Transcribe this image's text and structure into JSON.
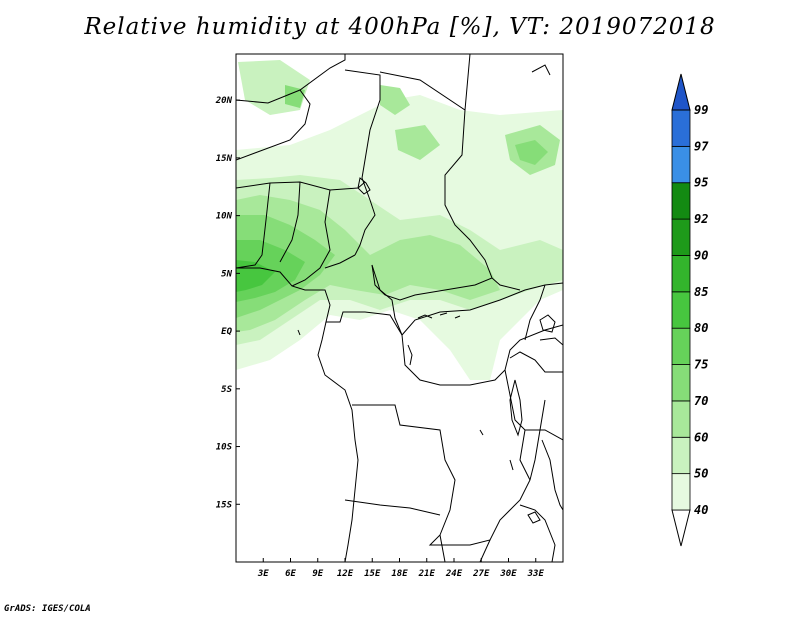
{
  "title": "Relative humidity at 400hPa [%], VT: 2019072018",
  "credit": "GrADS: IGES/COLA",
  "map": {
    "lon_range": [
      0,
      36
    ],
    "lat_range": [
      -20,
      24
    ],
    "x_ticks": [
      "3E",
      "6E",
      "9E",
      "12E",
      "15E",
      "18E",
      "21E",
      "24E",
      "27E",
      "30E",
      "33E"
    ],
    "y_ticks": [
      "20N",
      "15N",
      "10N",
      "5N",
      "EQ",
      "5S",
      "10S",
      "15S"
    ]
  },
  "colorbar": {
    "labels": [
      "40",
      "50",
      "60",
      "70",
      "75",
      "80",
      "85",
      "90",
      "92",
      "95",
      "97",
      "99"
    ],
    "colors": [
      "#ffffff",
      "#e6fae0",
      "#c9f2bf",
      "#a8e89a",
      "#86dd78",
      "#66d25a",
      "#47c63f",
      "#33b52c",
      "#1e9a1a",
      "#138a12",
      "#3a8fe6",
      "#2a6fd8",
      "#1f55c8"
    ]
  }
}
